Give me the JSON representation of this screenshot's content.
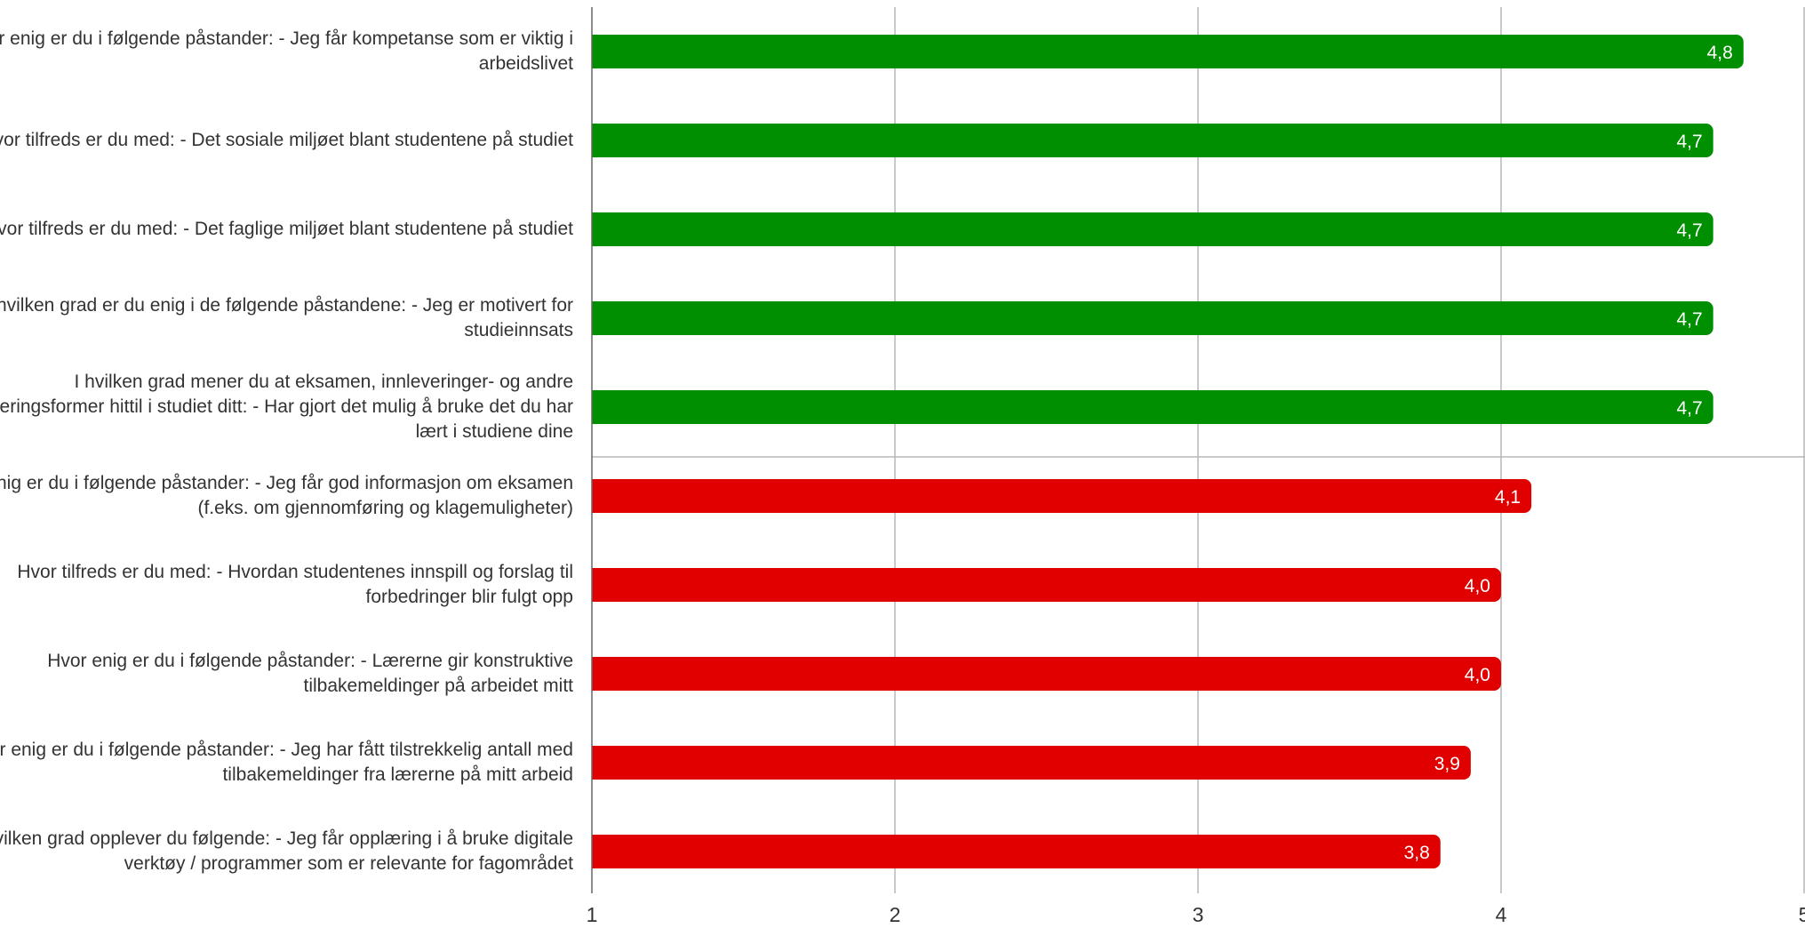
{
  "chart_data": {
    "type": "bar",
    "orientation": "horizontal",
    "categories": [
      "Hvor enig er du i følgende påstander:  - Jeg får kompetanse som er viktig i arbeidslivet",
      "Hvor tilfreds er du med: - Det sosiale miljøet blant studentene på studiet",
      "Hvor tilfreds er du med: - Det faglige miljøet blant studentene på studiet",
      "I hvilken grad er du enig i de følgende påstandene: - Jeg er motivert for studieinnsats",
      "I hvilken grad mener du at eksamen, innleveringer- og andre vurderingsformer hittil i studiet ditt: - Har gjort det mulig å bruke det du har lært i studiene dine",
      "Hvor enig er du i følgende påstander: - Jeg får god informasjon om eksamen (f.eks. om gjennomføring og klagemuligheter)",
      "Hvor tilfreds er du med: - Hvordan studentenes innspill og forslag til forbedringer blir fulgt opp",
      "Hvor enig er du i følgende påstander: - Lærerne gir konstruktive tilbakemeldinger på arbeidet mitt",
      "Hvor enig er du i følgende påstander: - Jeg har fått tilstrekkelig antall med tilbakemeldinger fra lærerne på mitt arbeid",
      "I hvilken grad opplever du følgende: - Jeg får opplæring i å bruke digitale verktøy / programmer som er relevante for fagområdet"
    ],
    "values": [
      4.8,
      4.7,
      4.7,
      4.7,
      4.7,
      4.1,
      4.0,
      4.0,
      3.9,
      3.8
    ],
    "value_labels": [
      "4,8",
      "4,7",
      "4,7",
      "4,7",
      "4,7",
      "4,1",
      "4,0",
      "4,0",
      "3,9",
      "3,8"
    ],
    "bar_colors": [
      "#008f00",
      "#008f00",
      "#008f00",
      "#008f00",
      "#008f00",
      "#e00000",
      "#e00000",
      "#e00000",
      "#e00000",
      "#e00000"
    ],
    "xlim": [
      1,
      5
    ],
    "x_ticks": [
      "1",
      "2",
      "3",
      "4",
      "5"
    ],
    "grid": true,
    "title": "",
    "xlabel": "",
    "ylabel": ""
  }
}
